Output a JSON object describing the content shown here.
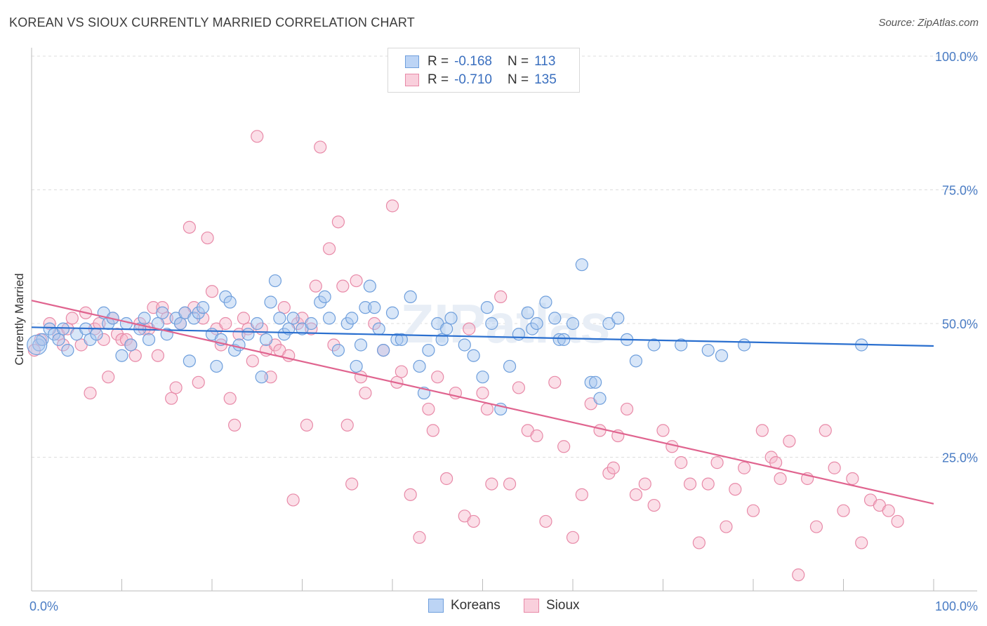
{
  "title": "KOREAN VS SIOUX CURRENTLY MARRIED CORRELATION CHART",
  "source": "Source: ZipAtlas.com",
  "watermark": "ZIPatlas",
  "legend": {
    "rows": [
      {
        "r_label": "R =",
        "r_value": "-0.168",
        "n_label": "N =",
        "n_value": "113"
      },
      {
        "r_label": "R =",
        "r_value": "-0.710",
        "n_label": "N =",
        "n_value": "135"
      }
    ]
  },
  "bottom_legend": [
    "Koreans",
    "Sioux"
  ],
  "colors": {
    "korean_fill": "#a9c8f0",
    "korean_stroke": "#6f9fdc",
    "korean_line": "#2a6fcf",
    "sioux_fill": "#f6b9cc",
    "sioux_stroke": "#e88aa8",
    "sioux_line": "#e0648f",
    "tick_color": "#4a7cc4",
    "grid": "#dddddd"
  },
  "chart_data": {
    "type": "scatter",
    "title": "KOREAN VS SIOUX CURRENTLY MARRIED CORRELATION CHART",
    "xlabel": "",
    "ylabel": "Currently Married",
    "xlim": [
      0,
      100
    ],
    "ylim": [
      0,
      100
    ],
    "x_tick_labels": [
      "0.0%",
      "100.0%"
    ],
    "y_tick_labels": [
      "25.0%",
      "50.0%",
      "75.0%",
      "100.0%"
    ],
    "y_ticks": [
      25,
      50,
      75,
      100
    ],
    "grid": true,
    "legend_position": "top-center",
    "series": [
      {
        "name": "Koreans",
        "r": -0.168,
        "n": 113,
        "trend": {
          "x": [
            0,
            100
          ],
          "y": [
            49.3,
            45.8
          ]
        },
        "points": [
          [
            0.8,
            46
          ],
          [
            1.2,
            47
          ],
          [
            2,
            49
          ],
          [
            2.5,
            48
          ],
          [
            3,
            47
          ],
          [
            3.5,
            49
          ],
          [
            4,
            45
          ],
          [
            5,
            48
          ],
          [
            6,
            49
          ],
          [
            6.5,
            47
          ],
          [
            7.2,
            48
          ],
          [
            8,
            52
          ],
          [
            8.5,
            50
          ],
          [
            9,
            51
          ],
          [
            10,
            44
          ],
          [
            10.5,
            50
          ],
          [
            11,
            46
          ],
          [
            12,
            49
          ],
          [
            12.5,
            51
          ],
          [
            13,
            47
          ],
          [
            14,
            50
          ],
          [
            14.5,
            52
          ],
          [
            15,
            48
          ],
          [
            16,
            51
          ],
          [
            16.5,
            50
          ],
          [
            17,
            52
          ],
          [
            17.5,
            43
          ],
          [
            18,
            51
          ],
          [
            18.5,
            52
          ],
          [
            19,
            53
          ],
          [
            20,
            48
          ],
          [
            20.5,
            42
          ],
          [
            21,
            47
          ],
          [
            21.5,
            55
          ],
          [
            22,
            54
          ],
          [
            22.5,
            45
          ],
          [
            23,
            46
          ],
          [
            24,
            48
          ],
          [
            25,
            50
          ],
          [
            25.5,
            40
          ],
          [
            26,
            47
          ],
          [
            26.5,
            54
          ],
          [
            27,
            58
          ],
          [
            27.5,
            51
          ],
          [
            28,
            48
          ],
          [
            28.5,
            49
          ],
          [
            29,
            51
          ],
          [
            30,
            49
          ],
          [
            31,
            50
          ],
          [
            32,
            54
          ],
          [
            32.5,
            55
          ],
          [
            33,
            51
          ],
          [
            34,
            45
          ],
          [
            35,
            50
          ],
          [
            35.5,
            51
          ],
          [
            36,
            42
          ],
          [
            36.5,
            46
          ],
          [
            37,
            53
          ],
          [
            37.5,
            57
          ],
          [
            38,
            53
          ],
          [
            38.5,
            49
          ],
          [
            39,
            45
          ],
          [
            40,
            52
          ],
          [
            40.5,
            47
          ],
          [
            41,
            47
          ],
          [
            42,
            55
          ],
          [
            43,
            42
          ],
          [
            43.5,
            37
          ],
          [
            44,
            45
          ],
          [
            45,
            50
          ],
          [
            45.5,
            47
          ],
          [
            46,
            49
          ],
          [
            46.5,
            51
          ],
          [
            48,
            46
          ],
          [
            49,
            44
          ],
          [
            50,
            40
          ],
          [
            50.5,
            53
          ],
          [
            51,
            50
          ],
          [
            52,
            34
          ],
          [
            53,
            42
          ],
          [
            54,
            48
          ],
          [
            55,
            52
          ],
          [
            55.5,
            49
          ],
          [
            56,
            50
          ],
          [
            57,
            54
          ],
          [
            58,
            51
          ],
          [
            58.5,
            47
          ],
          [
            59,
            47
          ],
          [
            60,
            50
          ],
          [
            61,
            61
          ],
          [
            62,
            39
          ],
          [
            62.5,
            39
          ],
          [
            63,
            36
          ],
          [
            64,
            50
          ],
          [
            65,
            51
          ],
          [
            66,
            47
          ],
          [
            67,
            43
          ],
          [
            69,
            46
          ],
          [
            72,
            46
          ],
          [
            75,
            45
          ],
          [
            76.5,
            44
          ],
          [
            79,
            46
          ],
          [
            92,
            46
          ]
        ]
      },
      {
        "name": "Sioux",
        "r": -0.71,
        "n": 135,
        "trend": {
          "x": [
            0,
            100
          ],
          "y": [
            54.3,
            16.3
          ]
        },
        "points": [
          [
            0.3,
            45
          ],
          [
            1,
            47
          ],
          [
            2,
            50
          ],
          [
            3,
            48
          ],
          [
            3.5,
            46
          ],
          [
            4,
            49
          ],
          [
            4.5,
            51
          ],
          [
            5.5,
            46
          ],
          [
            6,
            52
          ],
          [
            6.5,
            37
          ],
          [
            7,
            49
          ],
          [
            7.5,
            50
          ],
          [
            8,
            47
          ],
          [
            8.5,
            40
          ],
          [
            9,
            51
          ],
          [
            9.5,
            48
          ],
          [
            10,
            47
          ],
          [
            10.5,
            47
          ],
          [
            11,
            46
          ],
          [
            11.5,
            44
          ],
          [
            12,
            50
          ],
          [
            12.5,
            49
          ],
          [
            13,
            49
          ],
          [
            13.5,
            53
          ],
          [
            14,
            44
          ],
          [
            14.5,
            53
          ],
          [
            15,
            51
          ],
          [
            15.5,
            36
          ],
          [
            16,
            38
          ],
          [
            16.5,
            50
          ],
          [
            17,
            52
          ],
          [
            17.5,
            68
          ],
          [
            18,
            53
          ],
          [
            18.5,
            39
          ],
          [
            19,
            51
          ],
          [
            19.5,
            66
          ],
          [
            20,
            56
          ],
          [
            20.5,
            49
          ],
          [
            21,
            46
          ],
          [
            21.5,
            50
          ],
          [
            22,
            36
          ],
          [
            22.5,
            31
          ],
          [
            23,
            48
          ],
          [
            23.5,
            51
          ],
          [
            24,
            49
          ],
          [
            24.5,
            43
          ],
          [
            25,
            85
          ],
          [
            25.5,
            49
          ],
          [
            26,
            45
          ],
          [
            26.5,
            40
          ],
          [
            27,
            46
          ],
          [
            27.5,
            45
          ],
          [
            28,
            53
          ],
          [
            28.5,
            44
          ],
          [
            29,
            17
          ],
          [
            29.5,
            50
          ],
          [
            30,
            51
          ],
          [
            30.5,
            31
          ],
          [
            31,
            49
          ],
          [
            31.5,
            57
          ],
          [
            32,
            83
          ],
          [
            33,
            64
          ],
          [
            33.5,
            46
          ],
          [
            34,
            69
          ],
          [
            34.5,
            57
          ],
          [
            35,
            31
          ],
          [
            35.5,
            20
          ],
          [
            36,
            58
          ],
          [
            36.5,
            40
          ],
          [
            37,
            37
          ],
          [
            38,
            50
          ],
          [
            39,
            45
          ],
          [
            40,
            72
          ],
          [
            40.5,
            39
          ],
          [
            41,
            41
          ],
          [
            42,
            18
          ],
          [
            43,
            10
          ],
          [
            44,
            34
          ],
          [
            44.5,
            30
          ],
          [
            45,
            40
          ],
          [
            46,
            21
          ],
          [
            47,
            37
          ],
          [
            48,
            14
          ],
          [
            48.5,
            49
          ],
          [
            49,
            13
          ],
          [
            50,
            37
          ],
          [
            50.5,
            34
          ],
          [
            51,
            20
          ],
          [
            52,
            55
          ],
          [
            53,
            20
          ],
          [
            54,
            38
          ],
          [
            55,
            30
          ],
          [
            56,
            29
          ],
          [
            57,
            13
          ],
          [
            58,
            39
          ],
          [
            59,
            27
          ],
          [
            60,
            10
          ],
          [
            61,
            18
          ],
          [
            62,
            35
          ],
          [
            63,
            30
          ],
          [
            64,
            22
          ],
          [
            64.5,
            23
          ],
          [
            65,
            29
          ],
          [
            66,
            34
          ],
          [
            67,
            18
          ],
          [
            68,
            20
          ],
          [
            69,
            16
          ],
          [
            70,
            30
          ],
          [
            71,
            27
          ],
          [
            72,
            24
          ],
          [
            73,
            20
          ],
          [
            74,
            9
          ],
          [
            75,
            20
          ],
          [
            76,
            24
          ],
          [
            77,
            12
          ],
          [
            78,
            19
          ],
          [
            79,
            23
          ],
          [
            80,
            15
          ],
          [
            81,
            30
          ],
          [
            82,
            25
          ],
          [
            82.5,
            24
          ],
          [
            83,
            21
          ],
          [
            84,
            28
          ],
          [
            85,
            3
          ],
          [
            86,
            21
          ],
          [
            87,
            12
          ],
          [
            88,
            30
          ],
          [
            89,
            23
          ],
          [
            90,
            15
          ],
          [
            91,
            21
          ],
          [
            92,
            9
          ],
          [
            93,
            17
          ],
          [
            94,
            16
          ],
          [
            95,
            15
          ],
          [
            96,
            13
          ]
        ]
      }
    ]
  }
}
